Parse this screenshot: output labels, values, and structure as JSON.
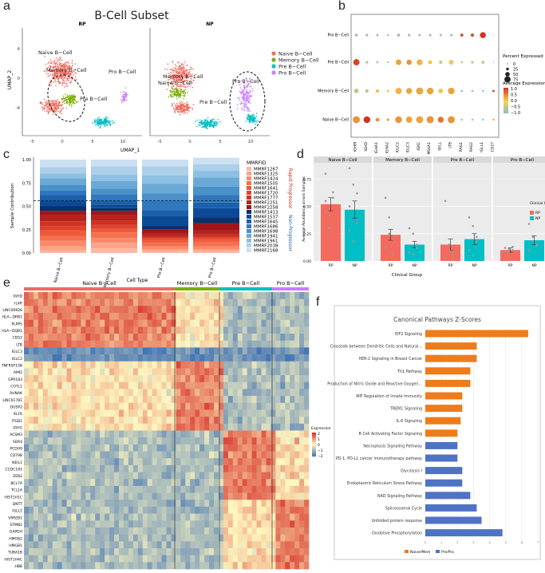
{
  "panel_labels": {
    "a": "a",
    "b": "b",
    "c": "c",
    "d": "d",
    "e": "e",
    "f": "f"
  },
  "colors": {
    "naive": "#f26b5e",
    "memory": "#7cae00",
    "pro": "#00bfc4",
    "preb": "#c77cff",
    "up": "#ef7c1a",
    "down": "#4f73c4"
  },
  "chart_data": [
    {
      "id": "a",
      "type": "scatter",
      "title": "B-Cell Subset",
      "facets": [
        "RP",
        "NP"
      ],
      "xlabel": "UMAP_1",
      "ylabel": "UMAP_2",
      "xticks": [
        "-5",
        "0",
        "5",
        "10"
      ],
      "yticks": [
        "4",
        "0",
        "-4"
      ],
      "legend": [
        "Naive B−Cell",
        "Memory B−Cell",
        "Pre B−Cell",
        "Pro B−Cell"
      ],
      "cluster_labels_rp": [
        "Naive B−Cell",
        "Memory B−Cell",
        "Pre B−Cell",
        "Pro B−Cell"
      ],
      "cluster_labels_np": [
        "Memory B−Cell",
        "Naive B−Cell",
        "Pre B−Cell",
        "Pro B−Cell"
      ]
    },
    {
      "id": "b",
      "type": "scatter",
      "rows": [
        "Pro B−Cell",
        "Pre B−Cell",
        "Memory B−Cell",
        "Naive B−Cell"
      ],
      "genes": [
        "IGHM",
        "IGHD",
        "IGHA1",
        "IGHA2",
        "IGLC2",
        "IGLC3",
        "IGKC",
        "MS4A1",
        "SELL",
        "LTB",
        "RAG1",
        "RAG2",
        "IGLL1",
        "CD27"
      ],
      "percent_expressed": [
        [
          20,
          15,
          10,
          5,
          20,
          15,
          10,
          15,
          10,
          15,
          20,
          25,
          60,
          0
        ],
        [
          65,
          15,
          10,
          5,
          55,
          50,
          60,
          30,
          25,
          45,
          10,
          15,
          20,
          0
        ],
        [
          40,
          25,
          20,
          10,
          65,
          60,
          75,
          70,
          40,
          70,
          5,
          5,
          5,
          10
        ],
        [
          75,
          70,
          30,
          15,
          70,
          65,
          75,
          75,
          60,
          75,
          5,
          5,
          5,
          5
        ]
      ],
      "avg_expression": [
        [
          -0.6,
          -0.7,
          -0.8,
          -0.9,
          -0.7,
          -0.6,
          -0.7,
          -0.6,
          -0.7,
          -0.6,
          0.9,
          0.8,
          1.0,
          -1.0
        ],
        [
          0.9,
          -0.6,
          -0.5,
          -0.7,
          0.3,
          0.4,
          0.2,
          0.1,
          -0.4,
          -0.2,
          -0.4,
          -0.4,
          -0.5,
          -1.0
        ],
        [
          -0.5,
          -0.6,
          0.2,
          0.1,
          0.2,
          0.3,
          0.3,
          0.3,
          0.1,
          0.3,
          -0.9,
          -0.9,
          -0.9,
          0.8
        ],
        [
          0.4,
          1.0,
          0.4,
          0.3,
          0.4,
          0.3,
          0.3,
          0.4,
          0.6,
          0.4,
          -0.8,
          -0.8,
          -0.8,
          0.3
        ]
      ],
      "size_legend_title": "Percent Expressed",
      "size_legend": [
        "0",
        "25",
        "50",
        "75"
      ],
      "color_legend_title": "Average Expression",
      "color_legend": [
        "1.0",
        "0.5",
        "0.0",
        "−0.5",
        "−1.0"
      ]
    },
    {
      "id": "c",
      "type": "bar",
      "categories": [
        "Naive B−Cell",
        "Memory B−Cell",
        "Pre B−Cell",
        "Pro B−Cell"
      ],
      "xlabel": "Cell Type",
      "ylabel": "Sample Contribution",
      "yticks": [
        "1.00",
        "0.75",
        "0.50",
        "0.25",
        "0.00"
      ],
      "ylim": [
        0,
        1
      ],
      "reference_line": 0.56,
      "legend_title": "MMRFID",
      "samples": [
        "MMRF1267",
        "MMRF1325",
        "MMRF1424",
        "MMRF1505",
        "MMRF1641",
        "MMRF1720",
        "MMRF1777",
        "MMRF2251",
        "MMRF2258",
        "MMRF1413",
        "MMRF1537",
        "MMRF1645",
        "MMRF1686",
        "MMRF1698",
        "MMRF1941",
        "MMRF1961",
        "MMRF2038",
        "MMRF2168"
      ],
      "group_labels": [
        "Rapid Progressor",
        "Non-Progressor"
      ],
      "series_values": [
        [
          0.03,
          0.05,
          0.02,
          0.02
        ],
        [
          0.04,
          0.06,
          0.02,
          0.02
        ],
        [
          0.06,
          0.05,
          0.03,
          0.03
        ],
        [
          0.05,
          0.06,
          0.04,
          0.05
        ],
        [
          0.06,
          0.04,
          0.03,
          0.03
        ],
        [
          0.05,
          0.04,
          0.02,
          0.02
        ],
        [
          0.05,
          0.05,
          0.02,
          0.03
        ],
        [
          0.07,
          0.06,
          0.03,
          0.04
        ],
        [
          0.04,
          0.04,
          0.04,
          0.08
        ],
        [
          0.05,
          0.03,
          0.04,
          0.06
        ],
        [
          0.06,
          0.04,
          0.11,
          0.1
        ],
        [
          0.06,
          0.04,
          0.06,
          0.06
        ],
        [
          0.05,
          0.07,
          0.1,
          0.08
        ],
        [
          0.06,
          0.06,
          0.08,
          0.09
        ],
        [
          0.07,
          0.08,
          0.1,
          0.1
        ],
        [
          0.05,
          0.07,
          0.09,
          0.07
        ],
        [
          0.07,
          0.09,
          0.1,
          0.07
        ],
        [
          0.08,
          0.07,
          0.07,
          0.07
        ]
      ]
    },
    {
      "id": "d",
      "type": "bar",
      "facets": [
        "Naive B−Cell",
        "Memory B−Cell",
        "Pre B−Cell",
        "Pro B−Cell"
      ],
      "groups": [
        "RP",
        "NP"
      ],
      "xlabel": "Clinical Group",
      "ylabel": "Average Abundance across Samples",
      "yticks": [
        "0.75",
        "0.50",
        "0.25",
        "0.00"
      ],
      "ylim": [
        0,
        0.9
      ],
      "means": [
        [
          0.52,
          0.47
        ],
        [
          0.24,
          0.15
        ],
        [
          0.15,
          0.2
        ],
        [
          0.1,
          0.19
        ]
      ],
      "errors": [
        [
          0.06,
          0.08
        ],
        [
          0.05,
          0.03
        ],
        [
          0.05,
          0.05
        ],
        [
          0.02,
          0.04
        ]
      ],
      "points": [
        [
          [
            0.8,
            0.42,
            0.63,
            0.55,
            0.3,
            0.58,
            0.45
          ],
          [
            0.85,
            0.7,
            0.35,
            0.5,
            0.18,
            0.62,
            0.28
          ]
        ],
        [
          [
            0.58,
            0.4,
            0.2,
            0.12,
            0.25,
            0.06
          ],
          [
            0.3,
            0.25,
            0.12,
            0.08,
            0.06,
            0.15
          ]
        ],
        [
          [
            0.55,
            0.15,
            0.05,
            0.03,
            0.1,
            0.08
          ],
          [
            0.4,
            0.32,
            0.22,
            0.1,
            0.05,
            0.18
          ]
        ],
        [
          [
            0.12,
            0.08,
            0.1,
            0.05,
            0.11,
            0.13
          ],
          [
            0.34,
            0.18,
            0.15,
            0.1,
            0.22,
            0.14
          ]
        ]
      ],
      "legend_title": "Clinical Group",
      "legend": [
        "RP",
        "NP"
      ]
    },
    {
      "id": "e",
      "type": "heatmap",
      "clusters": [
        "Naive B−Cell",
        "Memory B−Cell",
        "Pre B−Cell",
        "Pro B−Cell"
      ],
      "genes": [
        "IGHD",
        "IL4R",
        "LINC00926",
        "HLA−DRB1",
        "PLPP5",
        "HLA−DQB1",
        "CD52",
        "LTB",
        "IGLC3",
        "IGLC2",
        "TNFRSF13B",
        "AIM2",
        "GPR183",
        "COTL1",
        "AHNAK",
        "LINC01781",
        "DUSP2",
        "KLF6",
        "ITGB1",
        "IGHG",
        "ACSM3",
        "SOX4",
        "PCDH9",
        "CD79B",
        "NEIL1",
        "CCDC191",
        "ZEB2",
        "BCL7A",
        "TCL1A",
        "HIST1H1C",
        "DNTT",
        "IGLL1",
        "VPREB1",
        "STMN1",
        "GAPDH",
        "HMGB2",
        "HMGB1",
        "TUBA1B",
        "HIST1H4C",
        "HBB"
      ],
      "legend_title": "Expression",
      "legend": [
        "2",
        "1",
        "0",
        "−1",
        "−2"
      ]
    },
    {
      "id": "f",
      "type": "bar",
      "title": "Canonical Pathways Z-Scores",
      "categories": [
        "EIF2 Signaling",
        "Crosstalk between Dendritic Cells and Natural...",
        "HER-2 Signaling in Breast Cancer",
        "Th1 Pathway",
        "Production of Nitric Oxide and Reactive Oxygen...",
        "MIF Regulation of Innate Immunity",
        "TREM1 Signaling",
        "IL-6 Signaling",
        "B Cell Activating Factor Signaling",
        "Necroptosis Signaling Pathway",
        "PD-1, PD-L1 cancer immunotherapy pathway",
        "Glycolysis I",
        "Endoplasmic Reticulum Stress Pathway",
        "NAD Signaling Pathway",
        "Spliceosomal Cycle",
        "Unfolded protein response",
        "Oxidative Phosphorylation"
      ],
      "values": [
        6.4,
        3.2,
        3.2,
        2.8,
        2.8,
        2.3,
        2.3,
        2.2,
        2.0,
        2.0,
        2.0,
        2.3,
        2.3,
        2.8,
        3.2,
        3.5,
        4.8
      ],
      "groups": [
        "Naive/Mem",
        "Naive/Mem",
        "Naive/Mem",
        "Naive/Mem",
        "Naive/Mem",
        "Naive/Mem",
        "Naive/Mem",
        "Naive/Mem",
        "Naive/Mem",
        "Pre/Pro",
        "Pre/Pro",
        "Pre/Pro",
        "Pre/Pro",
        "Pre/Pro",
        "Pre/Pro",
        "Pre/Pro",
        "Pre/Pro"
      ],
      "xticks": [
        "0",
        "1",
        "2",
        "3",
        "4",
        "5",
        "6",
        "7"
      ],
      "xlim": [
        0,
        7
      ],
      "legend": [
        "Naive/Mem",
        "Pre/Pro"
      ]
    }
  ]
}
